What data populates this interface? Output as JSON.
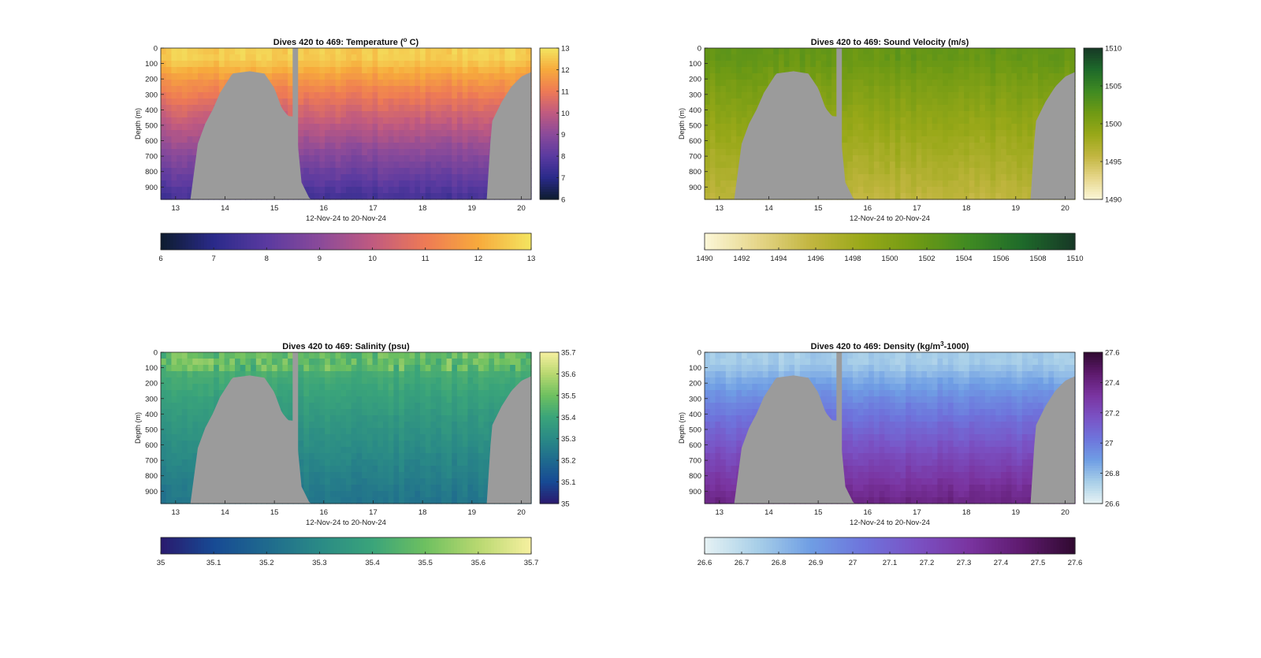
{
  "chart_data": [
    {
      "type": "heatmap",
      "variable": "temperature",
      "title": "Dives 420 to 469: Temperature (",
      "title_sup": "o",
      "title_end": " C)",
      "ylabel": "Depth (m)",
      "xlabel": "12-Nov-24 to 20-Nov-24",
      "x_ticks": [
        "13",
        "14",
        "15",
        "16",
        "17",
        "18",
        "19",
        "20"
      ],
      "y_ticks": [
        "0",
        "100",
        "200",
        "300",
        "400",
        "500",
        "600",
        "700",
        "800",
        "900"
      ],
      "xlim": [
        12.7,
        20.2
      ],
      "ylim": [
        0,
        980
      ],
      "clim": [
        6,
        13
      ],
      "colorbar_ticks": [
        "6",
        "7",
        "8",
        "9",
        "10",
        "11",
        "12",
        "13"
      ],
      "colorbar2_ticks": [
        "6",
        "7",
        "8",
        "9",
        "10",
        "11",
        "12",
        "13"
      ],
      "colormap": [
        "#0d1c2e",
        "#2a2a8a",
        "#5a3aa0",
        "#8a4a9a",
        "#c05a80",
        "#ee7a55",
        "#f7aa3c",
        "#f3e560"
      ],
      "surface_value": 12.6,
      "deep_value": 7.5
    },
    {
      "type": "heatmap",
      "variable": "sound_velocity",
      "title": "Dives 420 to 469: Sound Velocity (m/s)",
      "title_sup": "",
      "title_end": "",
      "ylabel": "Depth (m)",
      "xlabel": "12-Nov-24 to 20-Nov-24",
      "x_ticks": [
        "13",
        "14",
        "15",
        "16",
        "17",
        "18",
        "19",
        "20"
      ],
      "y_ticks": [
        "0",
        "100",
        "200",
        "300",
        "400",
        "500",
        "600",
        "700",
        "800",
        "900"
      ],
      "xlim": [
        12.7,
        20.2
      ],
      "ylim": [
        0,
        980
      ],
      "clim": [
        1490,
        1510
      ],
      "colorbar_ticks": [
        "1490",
        "1495",
        "1500",
        "1505",
        "1510"
      ],
      "colorbar2_ticks": [
        "1490",
        "1492",
        "1494",
        "1496",
        "1498",
        "1500",
        "1502",
        "1504",
        "1506",
        "1508",
        "1510"
      ],
      "colormap": [
        "#fcf7d8",
        "#e6d68a",
        "#c2b640",
        "#98a818",
        "#6f9a14",
        "#3f8a22",
        "#1e6a2a",
        "#173826"
      ],
      "surface_value": 1502,
      "deep_value": 1496
    },
    {
      "type": "heatmap",
      "variable": "salinity",
      "title": "Dives 420 to 469: Salinity (psu)",
      "title_sup": "",
      "title_end": "",
      "ylabel": "Depth (m)",
      "xlabel": "12-Nov-24 to 20-Nov-24",
      "x_ticks": [
        "13",
        "14",
        "15",
        "16",
        "17",
        "18",
        "19",
        "20"
      ],
      "y_ticks": [
        "0",
        "100",
        "200",
        "300",
        "400",
        "500",
        "600",
        "700",
        "800",
        "900"
      ],
      "xlim": [
        12.7,
        20.2
      ],
      "ylim": [
        0,
        980
      ],
      "clim": [
        35,
        35.7
      ],
      "colorbar_ticks": [
        "35",
        "35.1",
        "35.2",
        "35.3",
        "35.4",
        "35.5",
        "35.6",
        "35.7"
      ],
      "colorbar2_ticks": [
        "35",
        "35.1",
        "35.2",
        "35.3",
        "35.4",
        "35.5",
        "35.6",
        "35.7"
      ],
      "colormap": [
        "#2a1a6e",
        "#174a94",
        "#1f6a8e",
        "#2a8a86",
        "#3aa47a",
        "#6ec060",
        "#b8d870",
        "#f7f0a0"
      ],
      "surface_value": 35.45,
      "deep_value": 35.23
    },
    {
      "type": "heatmap",
      "variable": "density",
      "title": "Dives 420 to 469: Density (kg/m",
      "title_sup": "3",
      "title_end": "-1000)",
      "ylabel": "Depth (m)",
      "xlabel": "12-Nov-24 to 20-Nov-24",
      "x_ticks": [
        "13",
        "14",
        "15",
        "16",
        "17",
        "18",
        "19",
        "20"
      ],
      "y_ticks": [
        "0",
        "100",
        "200",
        "300",
        "400",
        "500",
        "600",
        "700",
        "800",
        "900"
      ],
      "xlim": [
        12.7,
        20.2
      ],
      "ylim": [
        0,
        980
      ],
      "clim": [
        26.6,
        27.6
      ],
      "colorbar_ticks": [
        "26.6",
        "26.8",
        "27",
        "27.2",
        "27.4",
        "27.6"
      ],
      "colorbar2_ticks": [
        "26.6",
        "26.7",
        "26.8",
        "26.9",
        "27",
        "27.1",
        "27.2",
        "27.3",
        "27.4",
        "27.5",
        "27.6"
      ],
      "colormap": [
        "#e6f2f4",
        "#a8cfe8",
        "#6f9ee4",
        "#6e74dc",
        "#7a52c4",
        "#7a34a0",
        "#5e1a6e",
        "#300a30"
      ],
      "surface_value": 26.75,
      "deep_value": 27.4
    }
  ],
  "terrain": {
    "color": "#9b9b9b",
    "bottom_depth_by_day": [
      [
        12.7,
        980
      ],
      [
        13.3,
        980
      ],
      [
        13.45,
        620
      ],
      [
        13.6,
        490
      ],
      [
        13.75,
        400
      ],
      [
        13.9,
        290
      ],
      [
        14.0,
        240
      ],
      [
        14.15,
        165
      ],
      [
        14.5,
        150
      ],
      [
        14.8,
        165
      ],
      [
        15.0,
        260
      ],
      [
        15.15,
        390
      ],
      [
        15.28,
        440
      ],
      [
        15.42,
        445
      ],
      [
        15.55,
        870
      ],
      [
        15.72,
        980
      ],
      [
        19.3,
        980
      ],
      [
        19.4,
        480
      ],
      [
        19.6,
        350
      ],
      [
        19.8,
        250
      ],
      [
        20.0,
        185
      ],
      [
        20.2,
        155
      ]
    ],
    "gap_day": [
      15.37,
      15.48
    ]
  }
}
